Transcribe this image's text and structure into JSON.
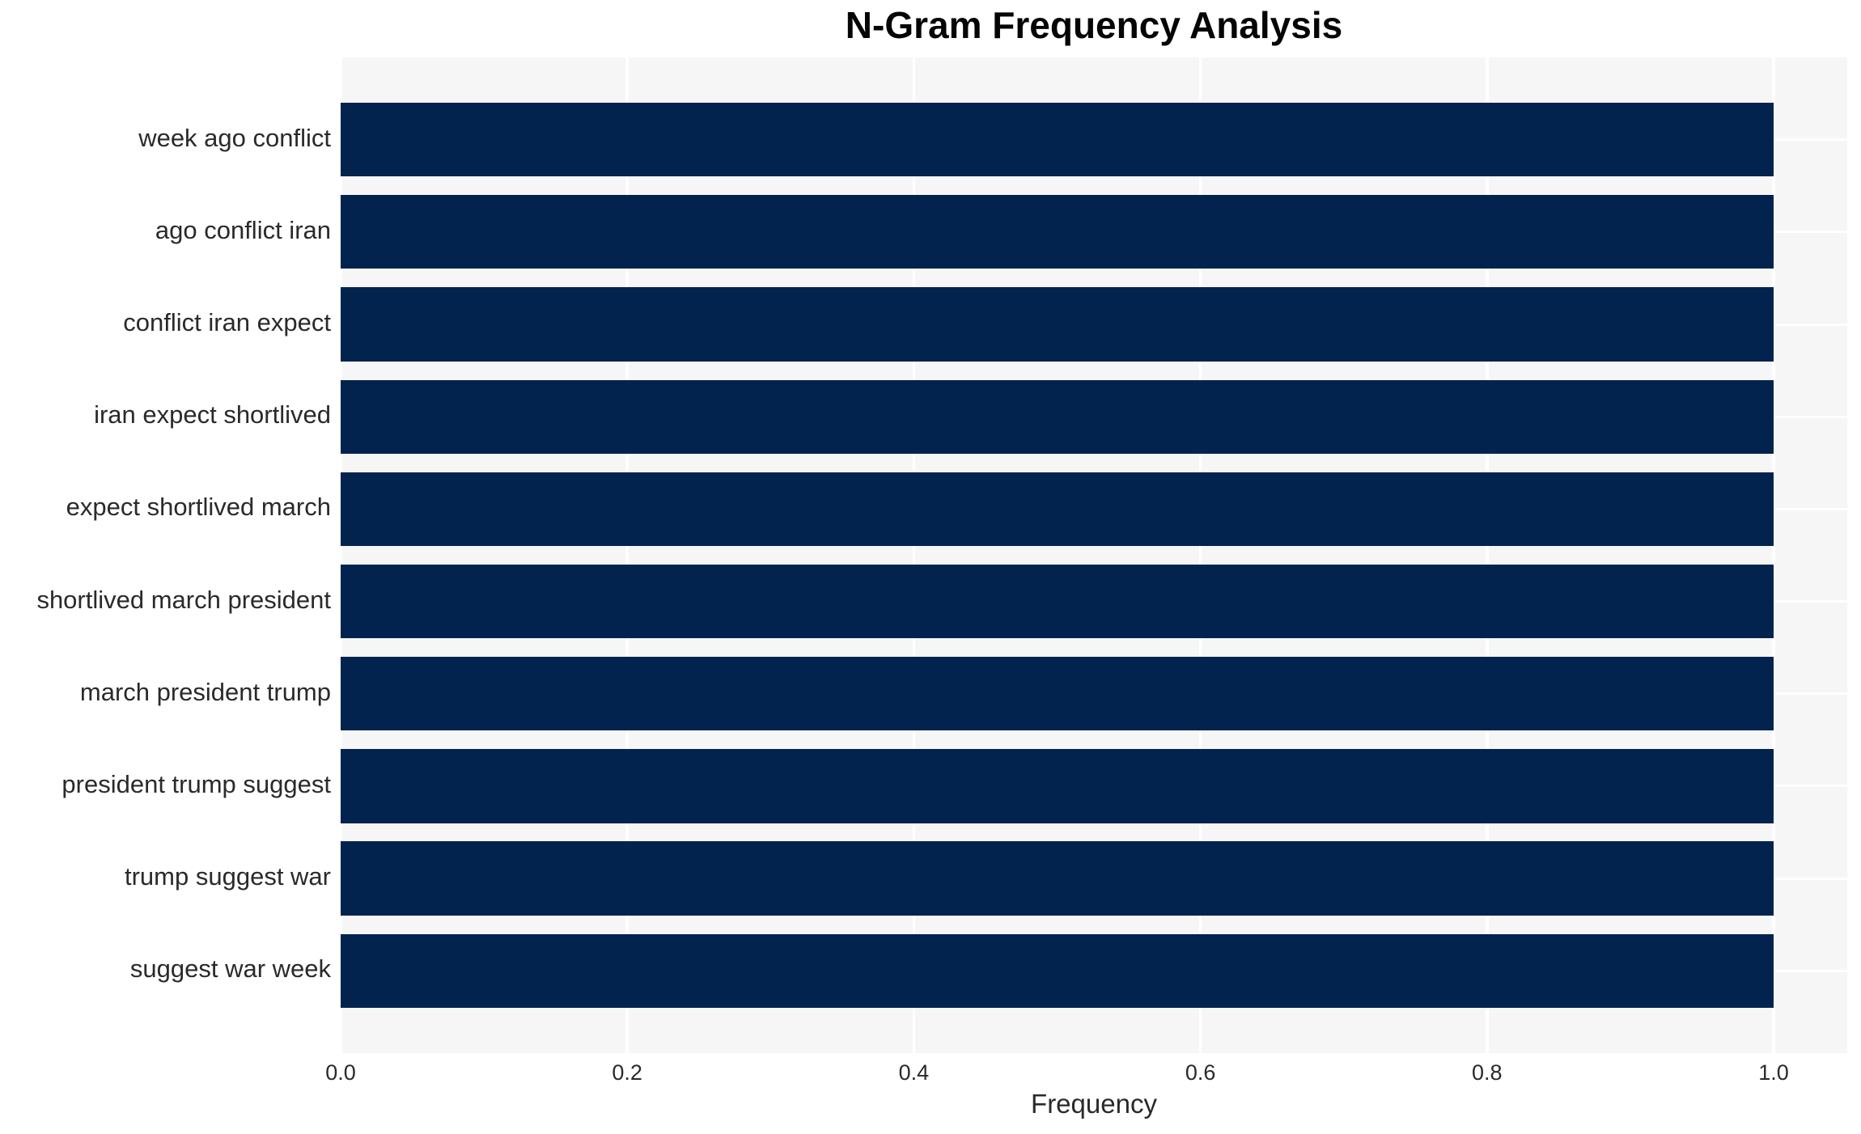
{
  "chart_data": {
    "type": "bar",
    "orientation": "horizontal",
    "title": "N-Gram Frequency Analysis",
    "xlabel": "Frequency",
    "ylabel": "",
    "categories": [
      "week ago conflict",
      "ago conflict iran",
      "conflict iran expect",
      "iran expect shortlived",
      "expect shortlived march",
      "shortlived march president",
      "march president trump",
      "president trump suggest",
      "trump suggest war",
      "suggest war week"
    ],
    "values": [
      1.0,
      1.0,
      1.0,
      1.0,
      1.0,
      1.0,
      1.0,
      1.0,
      1.0,
      1.0
    ],
    "xticks": [
      0.0,
      0.2,
      0.4,
      0.6,
      0.8,
      1.0
    ],
    "xlim": [
      0,
      1.051
    ],
    "grid": true,
    "legend": "none",
    "colors": {
      "bar": "#02234e",
      "panel_background": "#f6f6f7",
      "gridline": "#ffffff",
      "tick_text": "#2a2a2a",
      "title_text": "#050505"
    }
  }
}
